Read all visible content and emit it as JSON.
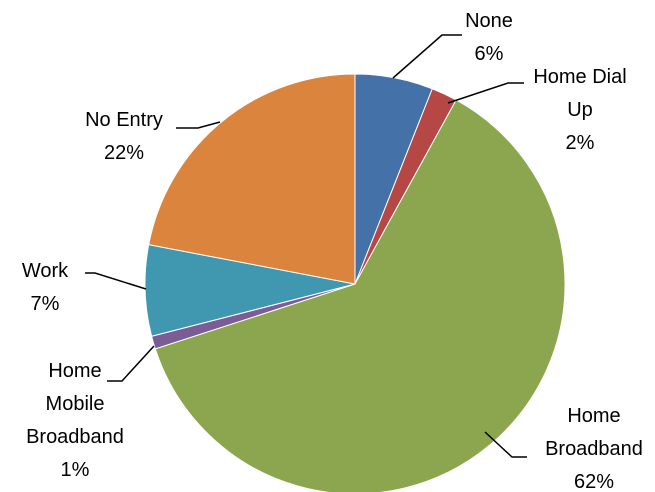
{
  "chart_data": {
    "type": "pie",
    "title": "",
    "start_angle_deg": 0,
    "direction": "clockwise",
    "slices": [
      {
        "name": "None",
        "label_lines": [
          "None",
          "6%"
        ],
        "value": 6,
        "color": "#4472A8"
      },
      {
        "name": "Home Dial Up",
        "label_lines": [
          "Home Dial",
          "Up",
          "2%"
        ],
        "value": 2,
        "color": "#B54745"
      },
      {
        "name": "Home Broadband",
        "label_lines": [
          "Home",
          "Broadband",
          "62%"
        ],
        "value": 62,
        "color": "#8BA64F"
      },
      {
        "name": "Home Mobile Broadband",
        "label_lines": [
          "Home",
          "Mobile",
          "Broadband",
          "1%"
        ],
        "value": 1,
        "color": "#7A5C96"
      },
      {
        "name": "Work",
        "label_lines": [
          "Work",
          "7%"
        ],
        "value": 7,
        "color": "#3F97B0"
      },
      {
        "name": "No Entry",
        "label_lines": [
          "No Entry",
          "22%"
        ],
        "value": 22,
        "color": "#DB843D"
      }
    ]
  }
}
